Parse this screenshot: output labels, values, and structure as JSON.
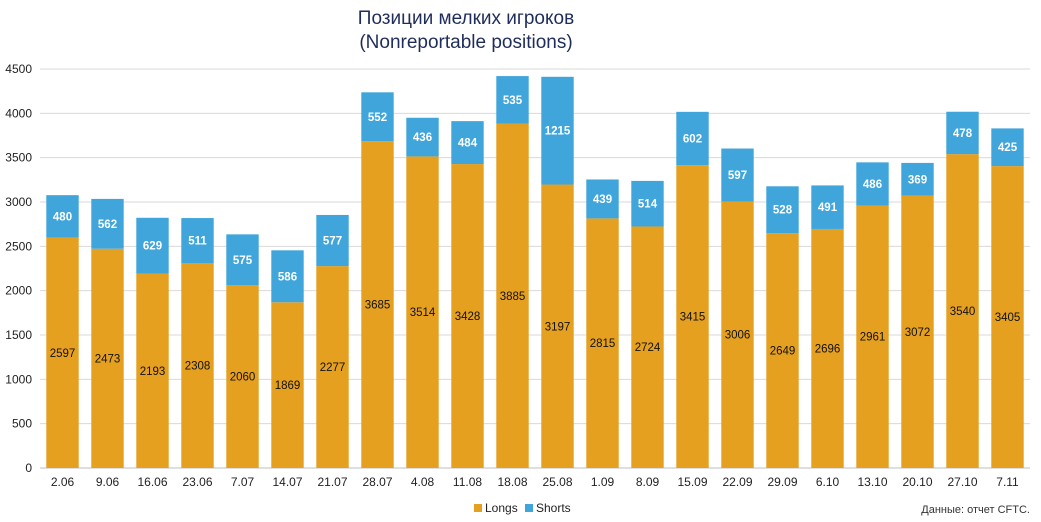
{
  "chart_data": {
    "type": "bar",
    "stacked": true,
    "title": "Позиции мелких игроков",
    "subtitle": "(Nonreportable positions)",
    "categories": [
      "2.06",
      "9.06",
      "16.06",
      "23.06",
      "7.07",
      "14.07",
      "21.07",
      "28.07",
      "4.08",
      "11.08",
      "18.08",
      "25.08",
      "1.09",
      "8.09",
      "15.09",
      "22.09",
      "29.09",
      "6.10",
      "13.10",
      "20.10",
      "27.10",
      "7.11"
    ],
    "series": [
      {
        "name": "Longs",
        "color": "#e5a020",
        "values": [
          2597,
          2473,
          2193,
          2308,
          2060,
          1869,
          2277,
          3685,
          3514,
          3428,
          3885,
          3197,
          2815,
          2724,
          3415,
          3006,
          2649,
          2696,
          2961,
          3072,
          3540,
          3405
        ]
      },
      {
        "name": "Shorts",
        "color": "#3fa5db",
        "values": [
          480,
          562,
          629,
          511,
          575,
          586,
          577,
          552,
          436,
          484,
          535,
          1215,
          439,
          514,
          602,
          597,
          528,
          491,
          486,
          369,
          478,
          425
        ]
      }
    ],
    "ylim": [
      0,
      4500
    ],
    "yticks": [
      0,
      500,
      1000,
      1500,
      2000,
      2500,
      3000,
      3500,
      4000,
      4500
    ],
    "grid": true,
    "legend_position": "bottom-center",
    "source_note": "Данные: отчет CFTC."
  }
}
